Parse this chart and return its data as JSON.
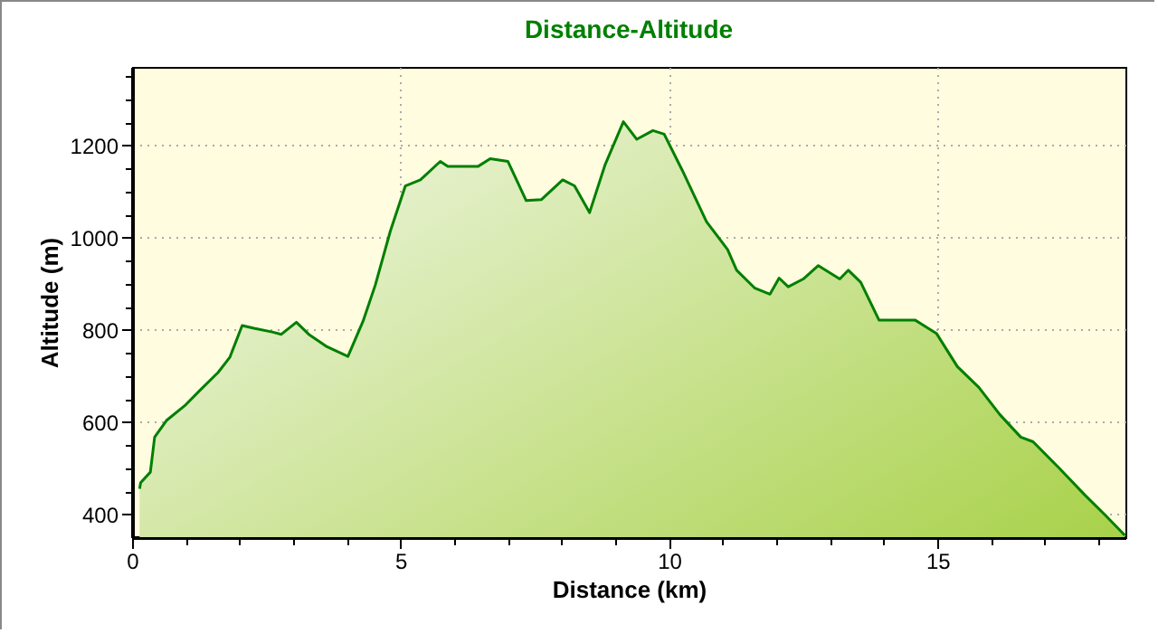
{
  "chart_data": {
    "type": "area",
    "title": "Distance-Altitude",
    "xlabel": "Distance (km)",
    "ylabel": "Altitude (m)",
    "xlim": [
      0,
      18.5
    ],
    "ylim": [
      350,
      1370
    ],
    "xticks": [
      0,
      {
        "value": 1,
        "label": null
      },
      {
        "value": 2,
        "label": null
      },
      {
        "value": 3,
        "label": null
      },
      {
        "value": 4,
        "label": null
      },
      5,
      {
        "value": 6,
        "label": null
      },
      {
        "value": 7,
        "label": null
      },
      {
        "value": 8,
        "label": null
      },
      {
        "value": 9,
        "label": null
      },
      10,
      {
        "value": 11,
        "label": null
      },
      {
        "value": 12,
        "label": null
      },
      {
        "value": 13,
        "label": null
      },
      {
        "value": 14,
        "label": null
      },
      15,
      {
        "value": 16,
        "label": null
      },
      {
        "value": 17,
        "label": null
      },
      {
        "value": 18,
        "label": null
      }
    ],
    "yticks": [
      400,
      {
        "value": 450,
        "label": null
      },
      {
        "value": 500,
        "label": null
      },
      {
        "value": 550,
        "label": null
      },
      600,
      {
        "value": 650,
        "label": null
      },
      {
        "value": 700,
        "label": null
      },
      {
        "value": 750,
        "label": null
      },
      800,
      {
        "value": 850,
        "label": null
      },
      {
        "value": 900,
        "label": null
      },
      {
        "value": 950,
        "label": null
      },
      1000,
      {
        "value": 1050,
        "label": null
      },
      {
        "value": 1100,
        "label": null
      },
      {
        "value": 1150,
        "label": null
      },
      1200,
      {
        "value": 1250,
        "label": null
      },
      {
        "value": 1300,
        "label": null
      },
      {
        "value": 1350,
        "label": null
      }
    ],
    "grid": true,
    "line_style": "dotted",
    "series": [
      {
        "color": "#007f00",
        "x": [
          0.14,
          0.16,
          0.34,
          0.42,
          0.64,
          0.98,
          1.26,
          1.6,
          1.82,
          2.05,
          2.27,
          2.61,
          2.78,
          3.06,
          3.29,
          3.63,
          4.02,
          4.3,
          4.53,
          4.81,
          5.09,
          5.37,
          5.74,
          5.88,
          6.44,
          6.67,
          7.0,
          7.34,
          7.62,
          8.02,
          8.24,
          8.52,
          8.81,
          9.15,
          9.4,
          9.7,
          9.91,
          10.25,
          10.7,
          11.09,
          11.26,
          11.6,
          11.88,
          12.05,
          12.22,
          12.5,
          12.78,
          13.18,
          13.34,
          13.57,
          13.91,
          14.58,
          14.98,
          15.37,
          15.77,
          16.16,
          16.55,
          16.78,
          17.28,
          17.74,
          18.13,
          18.49
        ],
        "values": [
          455,
          468,
          491,
          567,
          603,
          635,
          668,
          707,
          740,
          809,
          803,
          795,
          790,
          816,
          790,
          763,
          742,
          818,
          897,
          1014,
          1112,
          1125,
          1165,
          1154,
          1154,
          1171,
          1165,
          1080,
          1082,
          1125,
          1112,
          1054,
          1158,
          1251,
          1213,
          1232,
          1224,
          1145,
          1034,
          974,
          929,
          890,
          877,
          912,
          893,
          910,
          939,
          910,
          929,
          903,
          821,
          821,
          792,
          720,
          675,
          616,
          567,
          557,
          498,
          442,
          397,
          354
        ]
      }
    ]
  }
}
